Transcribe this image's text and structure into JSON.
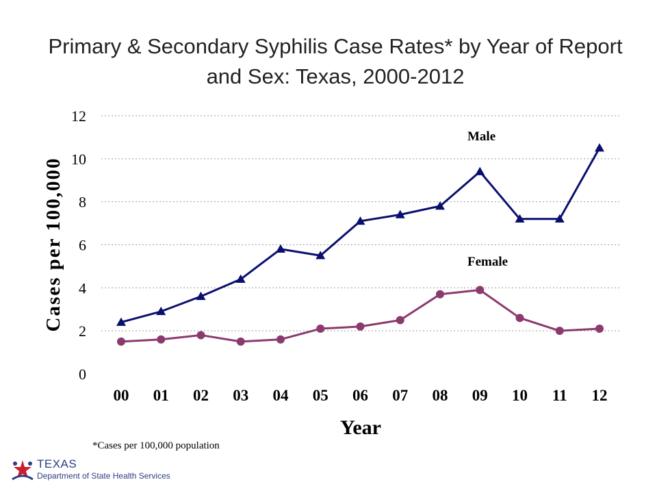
{
  "slide": {
    "title": "Primary & Secondary Syphilis Case Rates* by Year of Report and Sex: Texas, 2000-2012",
    "footnote": "*Cases per 100,000 population"
  },
  "logo": {
    "word": "TEXAS",
    "department": "Department of State Health Services",
    "icon": "texas-star-people-logo-icon"
  },
  "chart_data": {
    "type": "line",
    "title": "",
    "xlabel": "Year",
    "ylabel": "Cases per 100,000",
    "categories": [
      "00",
      "01",
      "02",
      "03",
      "04",
      "05",
      "06",
      "07",
      "08",
      "09",
      "10",
      "11",
      "12"
    ],
    "ylim": [
      0,
      12
    ],
    "yticks": [
      0,
      2,
      4,
      6,
      8,
      10,
      12
    ],
    "grid": true,
    "series": [
      {
        "name": "Male",
        "color": "#0a0f6e",
        "marker": "triangle",
        "values": [
          2.4,
          2.9,
          3.6,
          4.4,
          5.8,
          5.5,
          7.1,
          7.4,
          7.8,
          9.4,
          7.2,
          7.2,
          10.5
        ]
      },
      {
        "name": "Female",
        "color": "#8b3a6e",
        "marker": "circle",
        "values": [
          1.5,
          1.6,
          1.8,
          1.5,
          1.6,
          2.1,
          2.2,
          2.5,
          3.7,
          3.9,
          2.6,
          2.0,
          2.1
        ]
      }
    ]
  }
}
